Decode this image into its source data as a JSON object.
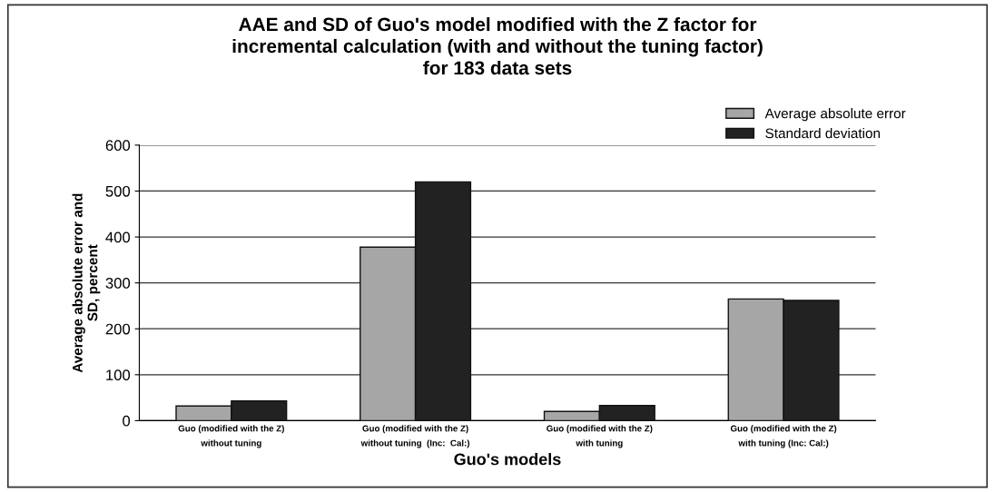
{
  "chart_data": {
    "type": "bar",
    "title": "AAE and SD of Guo's model modified with the Z factor for\nincremental calculation (with and without the tuning factor)\nfor 183 data sets",
    "xlabel": "Guo's models",
    "ylabel": "Average absolute error and\nSD, percent",
    "categories": [
      "Guo (modified with the Z)\nwithout tuning",
      "Guo (modified with the Z)\nwithout tuning  (Inc:  Cal:)",
      "Guo (modified with the Z)\nwith tuning",
      "Guo (modified with the Z)\nwith tuning (Inc: Cal:)"
    ],
    "series": [
      {
        "name": "Average absolute error",
        "color": "#a6a6a6",
        "values": [
          32,
          378,
          20,
          265
        ]
      },
      {
        "name": "Standard deviation",
        "color": "#222222",
        "values": [
          43,
          520,
          33,
          262
        ]
      }
    ],
    "ylim": [
      0,
      600
    ],
    "yticks": [
      0,
      100,
      200,
      300,
      400,
      500,
      600
    ],
    "grid": "y",
    "legend": "top right"
  }
}
